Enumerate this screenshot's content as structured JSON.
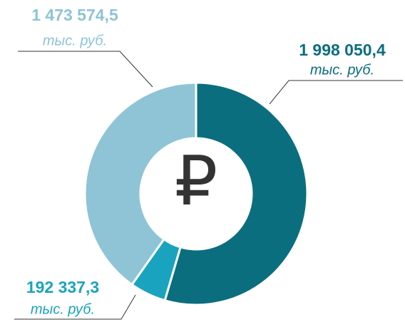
{
  "chart_data": {
    "type": "donut",
    "center_label": "₽",
    "unit": "тыс. руб.",
    "categories": [
      null,
      null,
      null
    ],
    "series": [
      {
        "name": null,
        "colors": [
          "#0b6e7e",
          "#1aa3bf",
          "#8ec4d6"
        ],
        "values": [
          1998050.4,
          192337.3,
          1473574.5
        ],
        "value_labels": [
          "1 998 050,4",
          "192 337,3",
          "1 473 574,5"
        ]
      }
    ]
  }
}
